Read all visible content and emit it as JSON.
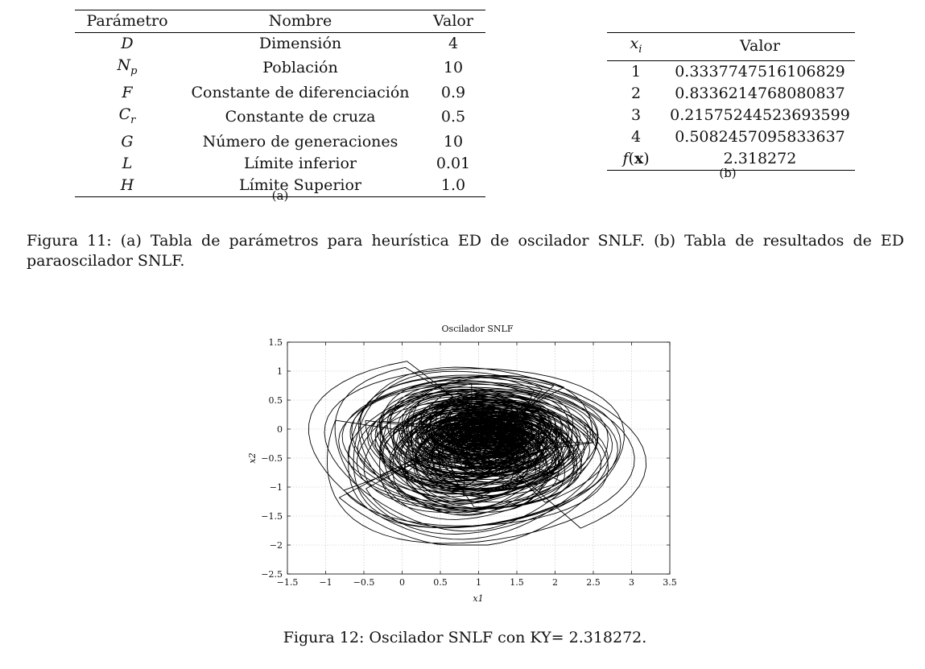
{
  "table_a": {
    "headers": [
      "Parámetro",
      "Nombre",
      "Valor"
    ],
    "rows": [
      {
        "sym": "D",
        "sub": "",
        "name": "Dimensión",
        "value": "4"
      },
      {
        "sym": "N",
        "sub": "p",
        "name": "Población",
        "value": "10"
      },
      {
        "sym": "F",
        "sub": "",
        "name": "Constante de diferenciación",
        "value": "0.9"
      },
      {
        "sym": "C",
        "sub": "r",
        "name": "Constante de cruza",
        "value": "0.5"
      },
      {
        "sym": "G",
        "sub": "",
        "name": "Número de generaciones",
        "value": "10"
      },
      {
        "sym": "L",
        "sub": "",
        "name": "Límite inferior",
        "value": "0.01"
      },
      {
        "sym": "H",
        "sub": "",
        "name": "Límite Superior",
        "value": "1.0"
      }
    ],
    "label": "(a)"
  },
  "table_b": {
    "headers": {
      "xi_sym": "x",
      "xi_sub": "i",
      "valor": "Valor"
    },
    "rows": [
      {
        "i": "1",
        "value": "0.3337747516106829"
      },
      {
        "i": "2",
        "value": "0.8336214768080837"
      },
      {
        "i": "3",
        "value": "0.21575244523693599"
      },
      {
        "i": "4",
        "value": "0.5082457095833637"
      }
    ],
    "fx": {
      "f": "f",
      "open": "(",
      "x": "x",
      "close": ")",
      "value": "2.318272"
    },
    "label": "(b)"
  },
  "caption_fig11": "Figura 11: (a) Tabla de parámetros para heurística ED de oscilador SNLF. (b) Tabla de resultados de ED paraoscilador SNLF.",
  "caption_fig12": "Figura 12: Oscilador SNLF con KY= 2.318272.",
  "chart_data": {
    "type": "line",
    "title": "Oscilador SNLF",
    "xlabel": "x1",
    "ylabel": "x2",
    "xlim": [
      -1.5,
      3.5
    ],
    "ylim": [
      -2.5,
      1.5
    ],
    "xticks": [
      -1.5,
      -1,
      -0.5,
      0,
      0.5,
      1,
      1.5,
      2,
      2.5,
      3,
      3.5
    ],
    "yticks": [
      -2.5,
      -2,
      -1.5,
      -1,
      -0.5,
      0,
      0.5,
      1,
      1.5
    ],
    "xtick_labels": [
      "−1.5",
      "−1",
      "−0.5",
      "0",
      "0.5",
      "1",
      "1.5",
      "2",
      "2.5",
      "3",
      "3.5"
    ],
    "ytick_labels": [
      "−2.5",
      "−2",
      "−1.5",
      "−1",
      "−0.5",
      "0",
      "0.5",
      "1",
      "1.5"
    ],
    "grid": true,
    "line_color": "#000000",
    "x_range_data": [
      -1.3,
      3.2
    ],
    "y_range_data": [
      -2.0,
      1.45
    ]
  }
}
